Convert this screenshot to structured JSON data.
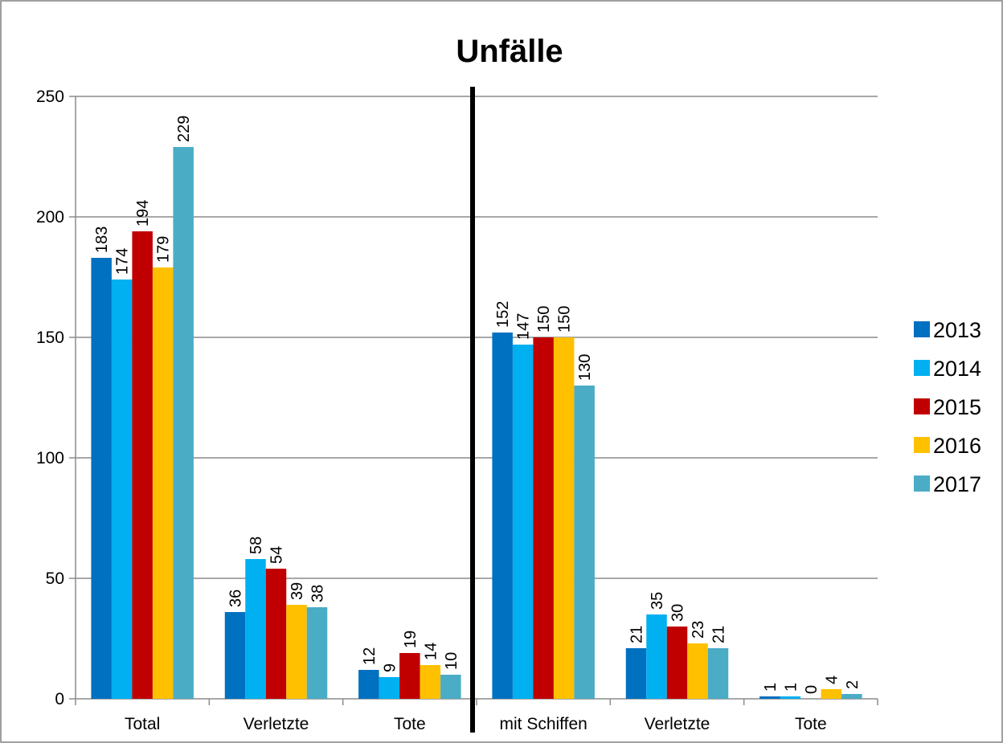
{
  "chart_data": {
    "type": "bar",
    "title": "Unfälle",
    "xlabel": "",
    "ylabel": "",
    "ylim": [
      0,
      250
    ],
    "yticks": [
      0,
      50,
      100,
      150,
      200,
      250
    ],
    "categories": [
      "Total",
      "Verletzte",
      "Tote",
      "mit Schiffen",
      "Verletzte",
      "Tote"
    ],
    "series": [
      {
        "name": "2013",
        "color": "#0070C0",
        "values": [
          183,
          36,
          12,
          152,
          21,
          1
        ]
      },
      {
        "name": "2014",
        "color": "#00B0F0",
        "values": [
          174,
          58,
          9,
          147,
          35,
          1
        ]
      },
      {
        "name": "2015",
        "color": "#C00000",
        "values": [
          194,
          54,
          19,
          150,
          30,
          0
        ]
      },
      {
        "name": "2016",
        "color": "#FFC000",
        "values": [
          179,
          39,
          14,
          150,
          23,
          4
        ]
      },
      {
        "name": "2017",
        "color": "#4BACC6",
        "values": [
          229,
          38,
          10,
          130,
          21,
          2
        ]
      }
    ],
    "grid": true,
    "legend": "right",
    "separator_after_category": 3
  }
}
